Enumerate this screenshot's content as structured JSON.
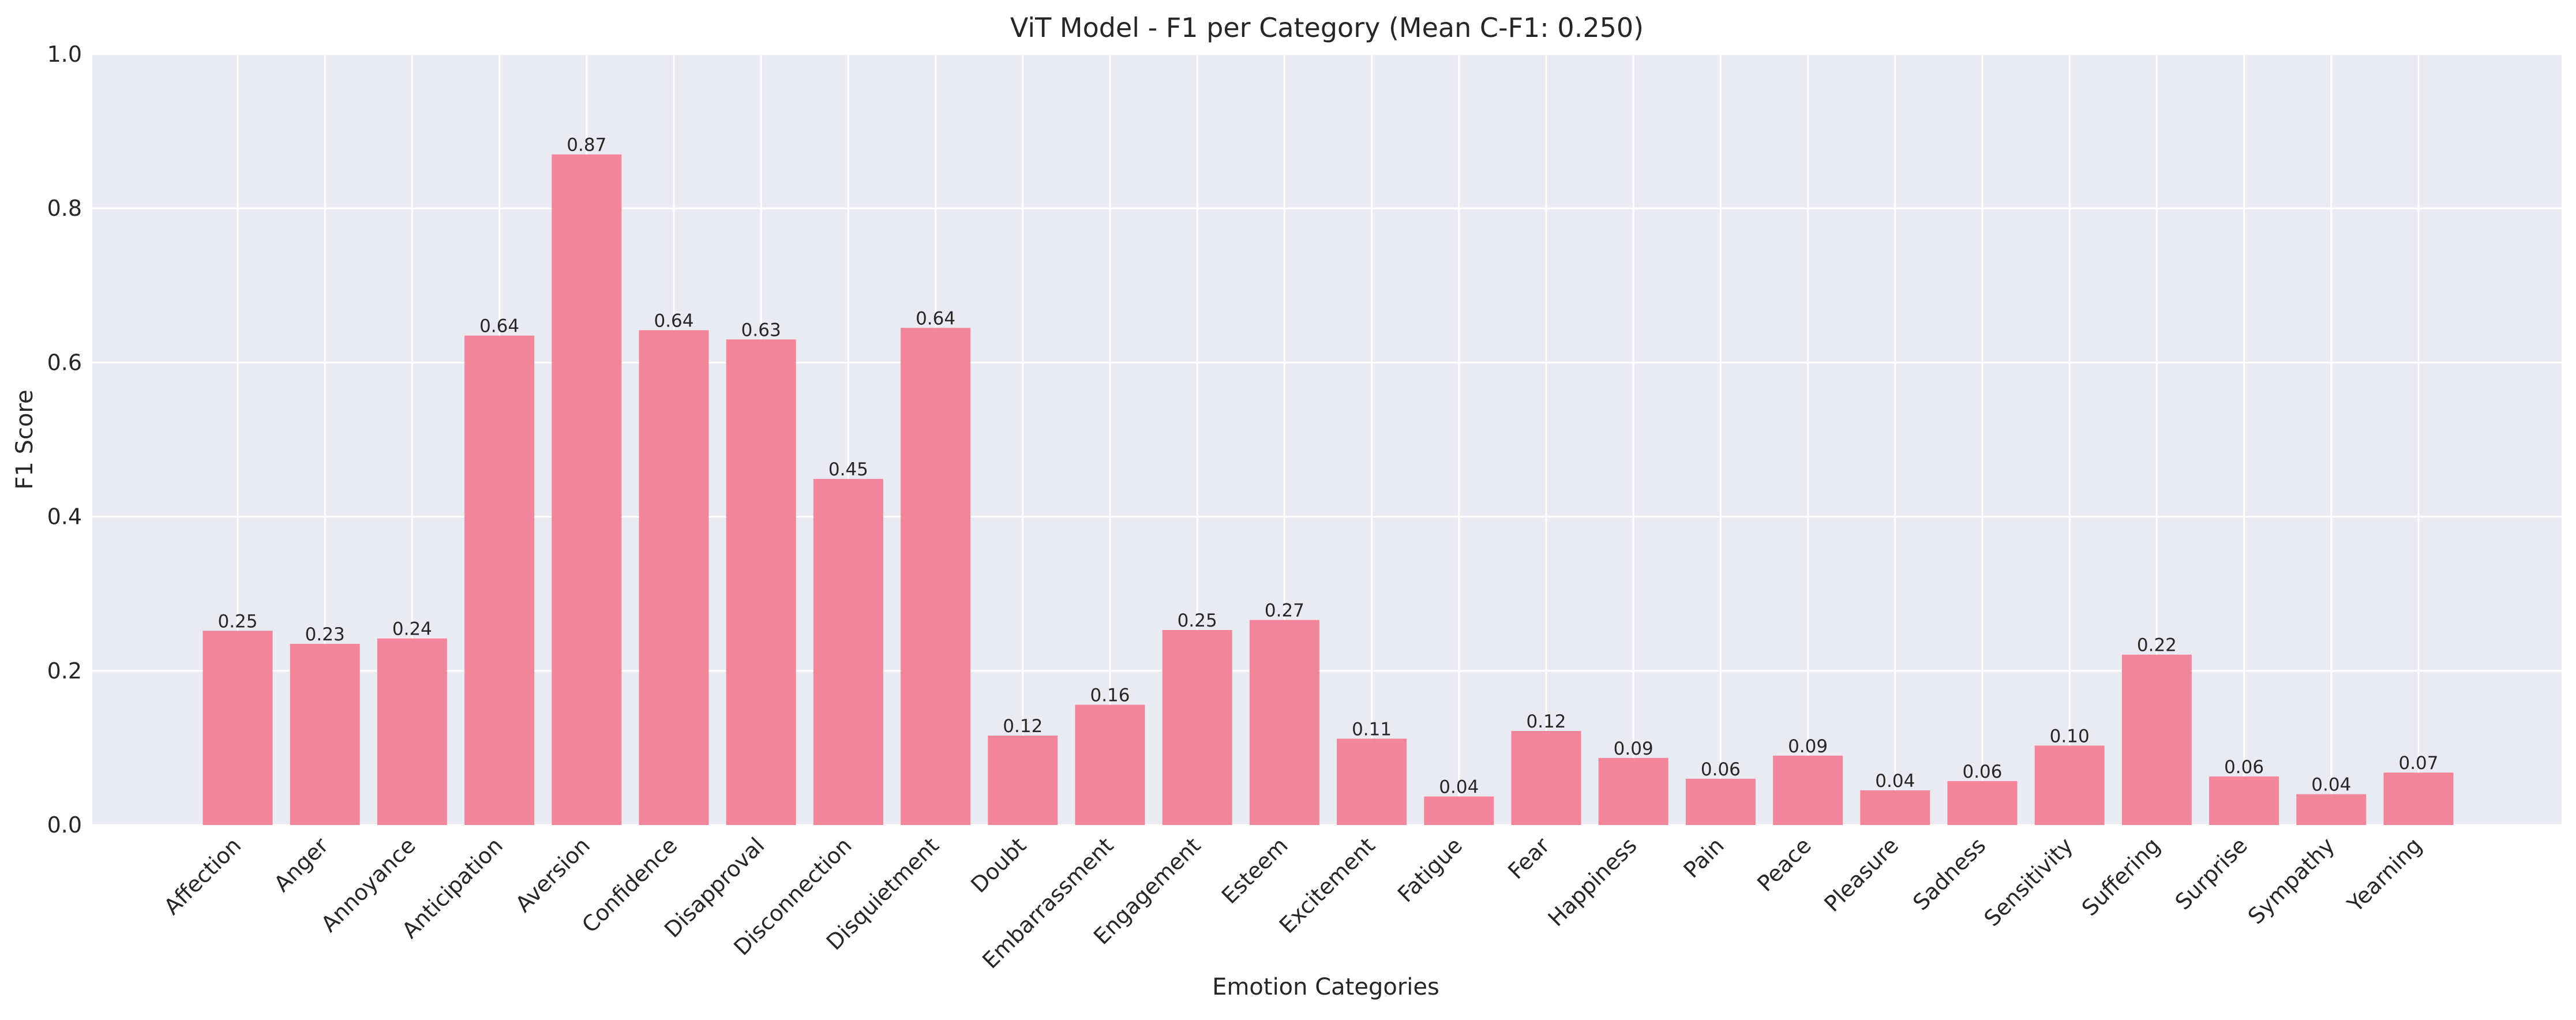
{
  "chart_data": {
    "type": "bar",
    "title": "ViT Model - F1 per Category (Mean C-F1: 0.250)",
    "xlabel": "Emotion Categories",
    "ylabel": "F1 Score",
    "ylim": [
      0,
      1.0
    ],
    "yticks": [
      "0.0",
      "0.2",
      "0.4",
      "0.6",
      "0.8",
      "1.0"
    ],
    "grid": true,
    "bar_color": "#f37f95",
    "background_color": "#eaeaf2",
    "categories": [
      "Affection",
      "Anger",
      "Annoyance",
      "Anticipation",
      "Aversion",
      "Confidence",
      "Disapproval",
      "Disconnection",
      "Disquietment",
      "Doubt",
      "Embarrassment",
      "Engagement",
      "Esteem",
      "Excitement",
      "Fatigue",
      "Fear",
      "Happiness",
      "Pain",
      "Peace",
      "Pleasure",
      "Sadness",
      "Sensitivity",
      "Suffering",
      "Surprise",
      "Sympathy",
      "Yearning"
    ],
    "values": [
      0.252,
      0.235,
      0.242,
      0.635,
      0.87,
      0.642,
      0.63,
      0.449,
      0.645,
      0.116,
      0.156,
      0.253,
      0.266,
      0.112,
      0.037,
      0.122,
      0.087,
      0.06,
      0.09,
      0.045,
      0.057,
      0.103,
      0.221,
      0.063,
      0.04,
      0.068
    ],
    "value_labels": [
      "0.25",
      "0.23",
      "0.24",
      "0.64",
      "0.87",
      "0.64",
      "0.63",
      "0.45",
      "0.64",
      "0.12",
      "0.16",
      "0.25",
      "0.27",
      "0.11",
      "0.04",
      "0.12",
      "0.09",
      "0.06",
      "0.09",
      "0.04",
      "0.06",
      "0.10",
      "0.22",
      "0.06",
      "0.04",
      "0.07"
    ]
  }
}
